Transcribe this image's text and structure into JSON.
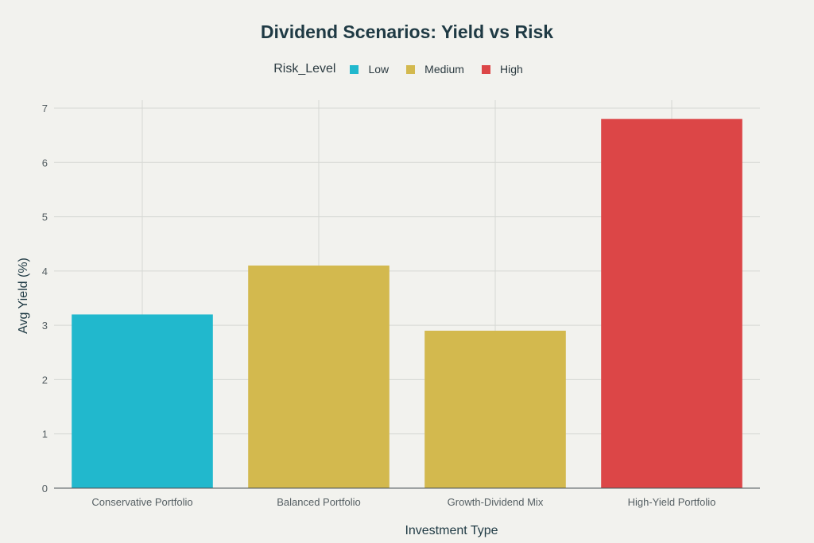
{
  "chart_data": {
    "type": "bar",
    "title": "Dividend Scenarios: Yield vs Risk",
    "xlabel": "Investment Type",
    "ylabel": "Avg Yield (%)",
    "categories": [
      "Conservative Portfolio",
      "Balanced Portfolio",
      "Growth-Dividend Mix",
      "High-Yield Portfolio"
    ],
    "values": [
      3.2,
      4.1,
      2.9,
      6.8
    ],
    "risk_levels": [
      "Low",
      "Medium",
      "Medium",
      "High"
    ],
    "ylim": [
      0,
      7
    ],
    "yticks": [
      0,
      1,
      2,
      3,
      4,
      5,
      6,
      7
    ],
    "grid": true,
    "legend": {
      "title": "Risk_Level",
      "position": "top-center",
      "items": [
        {
          "name": "Low",
          "color": "#21b8cd"
        },
        {
          "name": "Medium",
          "color": "#d3b94e"
        },
        {
          "name": "High",
          "color": "#dc4647"
        }
      ]
    }
  }
}
